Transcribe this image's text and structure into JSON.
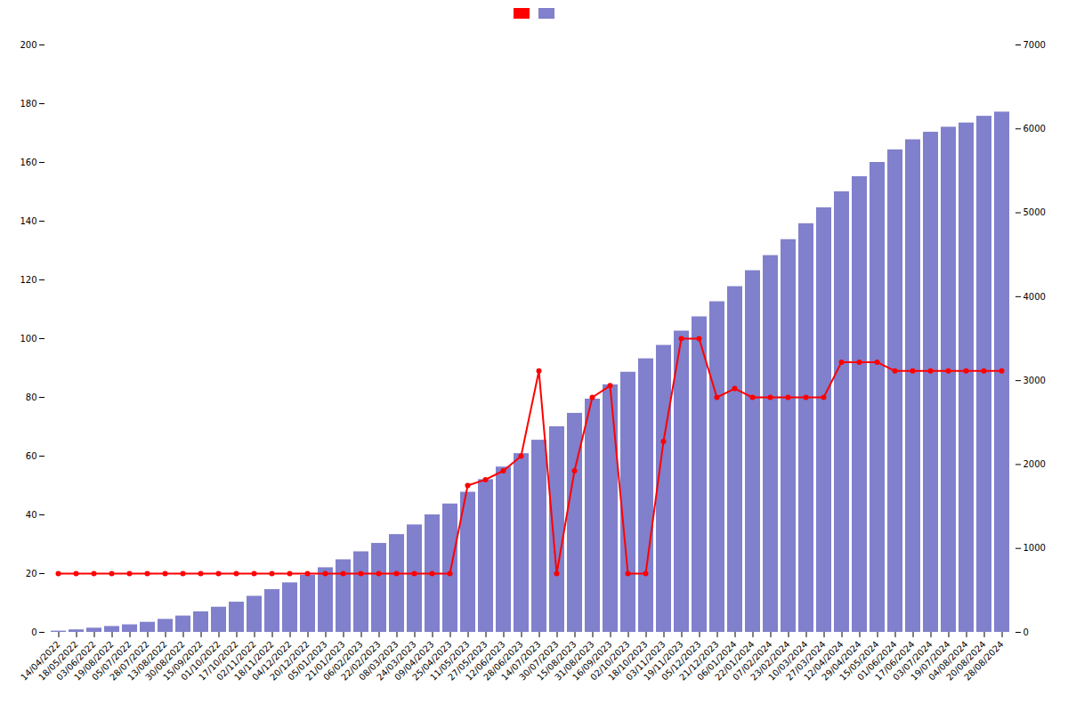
{
  "chart_data": {
    "type": "bar",
    "categories": [
      "14/04/2022",
      "18/05/2022",
      "03/06/2022",
      "19/08/2022",
      "05/07/2022",
      "28/07/2022",
      "13/08/2022",
      "30/08/2022",
      "15/09/2022",
      "01/10/2022",
      "17/10/2022",
      "02/11/2022",
      "18/11/2022",
      "04/12/2022",
      "20/12/2022",
      "05/01/2023",
      "21/01/2023",
      "06/02/2023",
      "22/02/2023",
      "08/03/2023",
      "24/03/2023",
      "09/04/2023",
      "25/04/2023",
      "11/05/2023",
      "27/05/2023",
      "12/06/2023",
      "28/06/2023",
      "14/07/2023",
      "30/07/2023",
      "15/08/2023",
      "31/08/2023",
      "16/09/2023",
      "02/10/2023",
      "18/10/2023",
      "03/11/2023",
      "19/11/2023",
      "05/12/2023",
      "21/12/2023",
      "06/01/2024",
      "22/01/2024",
      "07/02/2024",
      "23/02/2024",
      "10/03/2024",
      "27/03/2024",
      "12/04/2024",
      "29/04/2024",
      "15/05/2024",
      "01/06/2024",
      "17/06/2024",
      "03/07/2024",
      "19/07/2024",
      "04/08/2024",
      "20/08/2024",
      "28/08/2024"
    ],
    "series": [
      {
        "type": "line",
        "color": "#ff0000",
        "marker": "o",
        "values": [
          20,
          20,
          20,
          20,
          20,
          20,
          20,
          20,
          20,
          20,
          20,
          20,
          20,
          20,
          20,
          20,
          20,
          20,
          20,
          20,
          20,
          20,
          20,
          50,
          52,
          55,
          60,
          89,
          20,
          55,
          80,
          84,
          20,
          20,
          65,
          100,
          100,
          80,
          83,
          80,
          80,
          80,
          80,
          80,
          92,
          92,
          92,
          89,
          89,
          89,
          89,
          89,
          89,
          89
        ]
      },
      {
        "type": "bar",
        "color": "#8080cc",
        "axis": "y2",
        "values": [
          15,
          30,
          50,
          70,
          90,
          120,
          155,
          195,
          245,
          300,
          360,
          430,
          510,
          590,
          680,
          770,
          865,
          960,
          1060,
          1165,
          1280,
          1400,
          1530,
          1670,
          1820,
          1970,
          2130,
          2290,
          2450,
          2610,
          2780,
          2950,
          3100,
          3260,
          3420,
          3590,
          3760,
          3940,
          4120,
          4310,
          4490,
          4680,
          4870,
          5060,
          5250,
          5430,
          5600,
          5750,
          5870,
          5960,
          6020,
          6070,
          6150,
          6200
        ]
      }
    ],
    "ylim": [
      0,
      200
    ],
    "yticks": [
      0,
      20,
      40,
      60,
      80,
      100,
      120,
      140,
      160,
      180,
      200
    ],
    "y2lim": [
      0,
      7000
    ],
    "y2ticks": [
      0,
      1000,
      2000,
      3000,
      4000,
      5000,
      6000,
      7000
    ],
    "grid": false,
    "legend": "top"
  }
}
